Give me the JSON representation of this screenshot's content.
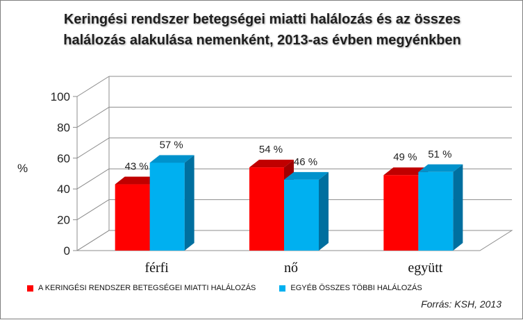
{
  "title_lines": [
    "Keringési rendszer betegségei miatti halálozás és az összes",
    "halálozás alakulása nemenként, 2013-as évben megyénkben"
  ],
  "source": "Forrás: KSH, 2013",
  "colors": {
    "series1_front": "#ff0000",
    "series1_top": "#c00000",
    "series1_side": "#a00000",
    "series2_front": "#00b0f0",
    "series2_top": "#0092cc",
    "series2_side": "#006f9f"
  },
  "chart_data": {
    "type": "bar",
    "title": "Keringési rendszer betegségei miatti halálozás és az összes halálozás alakulása nemenként, 2013-as évben megyénkben",
    "categories": [
      "férfi",
      "nő",
      "együtt"
    ],
    "ylabel": "%",
    "xlabel": "",
    "ylim": [
      0,
      100
    ],
    "yticks": [
      "0",
      "20",
      "40",
      "60",
      "80",
      "100"
    ],
    "grid": true,
    "legend_position": "bottom",
    "series": [
      {
        "name": "A KERINGÉSI RENDSZER BETEGSÉGEI MIATTI HALÁLOZÁS",
        "values": [
          43,
          54,
          49
        ],
        "labels": [
          "43 %",
          "54 %",
          "49 %"
        ]
      },
      {
        "name": "EGYÉB ÖSSZES TÖBBI HALÁLOZÁS",
        "values": [
          57,
          46,
          51
        ],
        "labels": [
          "57 %",
          "46 %",
          "51 %"
        ]
      }
    ]
  }
}
